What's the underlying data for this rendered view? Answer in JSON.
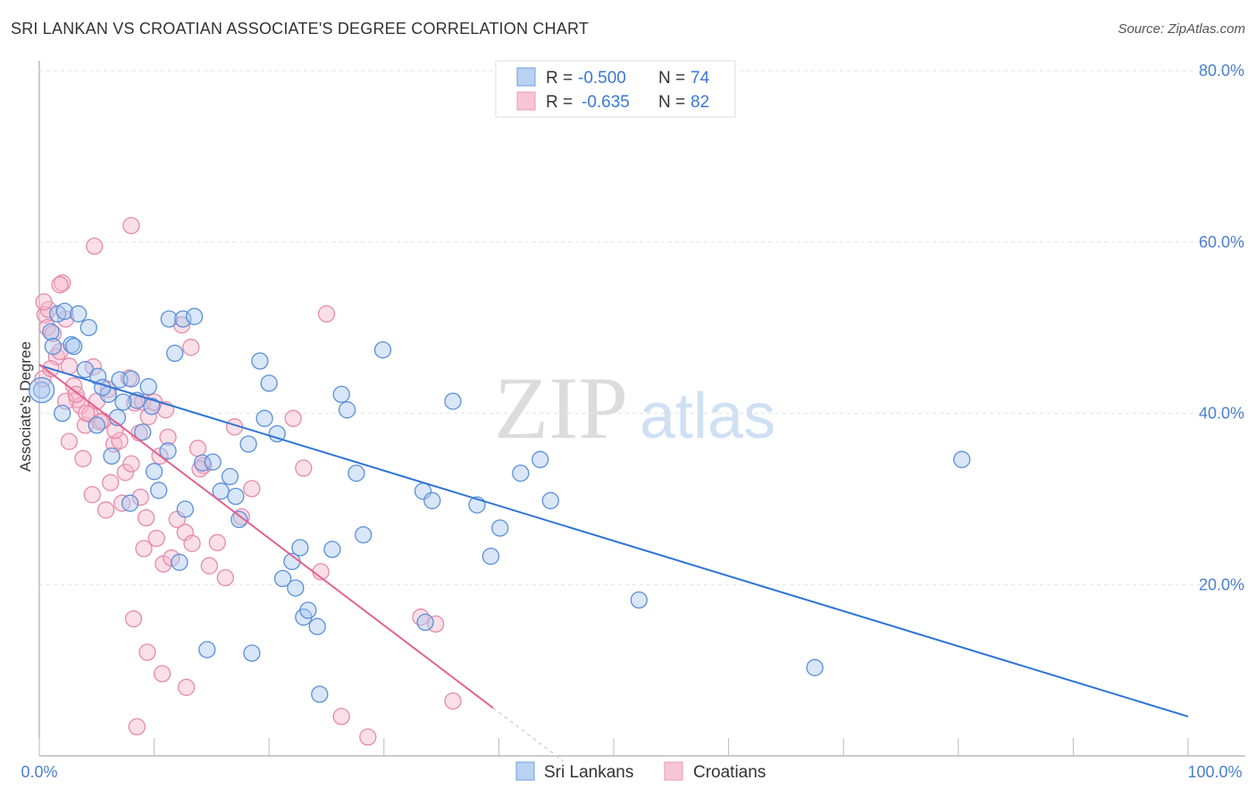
{
  "header": {
    "title": "SRI LANKAN VS CROATIAN ASSOCIATE'S DEGREE CORRELATION CHART",
    "source": "Source: ZipAtlas.com"
  },
  "watermark": {
    "zip": "ZIP",
    "atlas": "atlas"
  },
  "colors": {
    "blue_fill": "#a9c8f0",
    "blue_stroke": "#5b8fd8",
    "blue_line": "#2d74d6",
    "pink_fill": "#f6b8cc",
    "pink_stroke": "#e68aa9",
    "pink_line": "#e3628e"
  },
  "legend": {
    "rows": [
      {
        "r_label": "R = ",
        "r_value": "-0.500",
        "n_label": "N = ",
        "n_value": "74"
      },
      {
        "r_label": "R = ",
        "r_value": "-0.635",
        "n_label": "N = ",
        "n_value": "82"
      }
    ]
  },
  "chart_data": {
    "type": "scatter",
    "title": "SRI LANKAN VS CROATIAN ASSOCIATE'S DEGREE CORRELATION CHART",
    "xlabel": "",
    "ylabel": "Associate's Degree",
    "xlim": [
      0,
      100
    ],
    "ylim": [
      0,
      80
    ],
    "x_tick_labels": [
      "0.0%",
      "100.0%"
    ],
    "y_ticks": [
      20,
      40,
      60,
      80
    ],
    "y_tick_labels": [
      "20.0%",
      "40.0%",
      "60.0%",
      "80.0%"
    ],
    "legend_position": "bottom-center",
    "series": [
      {
        "name": "Sri Lankans",
        "color": "#5b8fd8",
        "trend": {
          "x0": 0,
          "y0": 45.6,
          "x1": 100,
          "y1": 4.6
        },
        "points": [
          [
            0.2,
            42.7
          ],
          [
            1.0,
            49.5
          ],
          [
            1.6,
            51.6
          ],
          [
            2.2,
            51.9
          ],
          [
            1.2,
            47.8
          ],
          [
            2.8,
            48.0
          ],
          [
            3.4,
            51.6
          ],
          [
            4.3,
            50.0
          ],
          [
            4.0,
            45.1
          ],
          [
            5.1,
            44.3
          ],
          [
            6.0,
            42.2
          ],
          [
            7.0,
            43.9
          ],
          [
            8.0,
            44.0
          ],
          [
            8.5,
            41.5
          ],
          [
            9.5,
            43.1
          ],
          [
            9.0,
            37.8
          ],
          [
            11.3,
            51.0
          ],
          [
            11.8,
            47.0
          ],
          [
            12.5,
            51.0
          ],
          [
            13.5,
            51.3
          ],
          [
            6.3,
            35.0
          ],
          [
            7.9,
            29.5
          ],
          [
            10.0,
            33.2
          ],
          [
            10.4,
            31.0
          ],
          [
            11.2,
            35.6
          ],
          [
            12.7,
            28.8
          ],
          [
            14.2,
            34.2
          ],
          [
            15.1,
            34.3
          ],
          [
            15.8,
            30.9
          ],
          [
            16.6,
            32.6
          ],
          [
            17.1,
            30.3
          ],
          [
            17.4,
            27.6
          ],
          [
            18.2,
            36.4
          ],
          [
            19.2,
            46.1
          ],
          [
            19.6,
            39.4
          ],
          [
            20.0,
            43.5
          ],
          [
            20.7,
            37.6
          ],
          [
            21.2,
            20.7
          ],
          [
            22.0,
            22.7
          ],
          [
            22.3,
            19.6
          ],
          [
            22.7,
            24.3
          ],
          [
            23.0,
            16.2
          ],
          [
            23.4,
            17.0
          ],
          [
            24.2,
            15.1
          ],
          [
            24.4,
            7.2
          ],
          [
            25.5,
            24.1
          ],
          [
            26.3,
            42.2
          ],
          [
            26.8,
            40.4
          ],
          [
            27.6,
            33.0
          ],
          [
            28.2,
            25.8
          ],
          [
            29.9,
            47.4
          ],
          [
            33.4,
            30.9
          ],
          [
            33.6,
            15.6
          ],
          [
            34.2,
            29.8
          ],
          [
            36.0,
            41.4
          ],
          [
            38.1,
            29.3
          ],
          [
            39.3,
            23.3
          ],
          [
            40.1,
            26.6
          ],
          [
            41.9,
            33.0
          ],
          [
            43.6,
            34.6
          ],
          [
            44.5,
            29.8
          ],
          [
            52.2,
            18.2
          ],
          [
            67.5,
            10.3
          ],
          [
            80.3,
            34.6
          ],
          [
            3.0,
            47.8
          ],
          [
            5.5,
            43.0
          ],
          [
            12.2,
            22.6
          ],
          [
            14.6,
            12.4
          ],
          [
            18.5,
            12.0
          ],
          [
            5.0,
            38.6
          ],
          [
            6.8,
            39.5
          ],
          [
            7.3,
            41.3
          ],
          [
            2.0,
            40.0
          ],
          [
            9.8,
            40.8
          ]
        ]
      },
      {
        "name": "Croatians",
        "color": "#e68aa9",
        "trend": {
          "x0": 0,
          "y0": 45.7,
          "x1": 39.5,
          "y1": 5.6
        },
        "points": [
          [
            0.3,
            44.0
          ],
          [
            0.5,
            51.5
          ],
          [
            0.7,
            50.0
          ],
          [
            1.2,
            49.3
          ],
          [
            1.5,
            46.6
          ],
          [
            1.8,
            47.2
          ],
          [
            2.0,
            55.2
          ],
          [
            2.3,
            51.0
          ],
          [
            2.6,
            45.5
          ],
          [
            3.0,
            43.2
          ],
          [
            3.3,
            41.6
          ],
          [
            3.6,
            40.9
          ],
          [
            4.0,
            38.6
          ],
          [
            4.4,
            39.9
          ],
          [
            4.7,
            45.4
          ],
          [
            5.0,
            41.4
          ],
          [
            5.5,
            39.1
          ],
          [
            6.0,
            42.8
          ],
          [
            6.5,
            36.4
          ],
          [
            7.0,
            36.8
          ],
          [
            7.5,
            33.1
          ],
          [
            8.0,
            34.1
          ],
          [
            8.3,
            41.2
          ],
          [
            8.7,
            37.7
          ],
          [
            9.0,
            41.3
          ],
          [
            9.5,
            39.6
          ],
          [
            10.0,
            41.3
          ],
          [
            10.5,
            35.0
          ],
          [
            11.0,
            40.4
          ],
          [
            6.2,
            31.9
          ],
          [
            7.2,
            29.5
          ],
          [
            8.8,
            30.2
          ],
          [
            9.3,
            27.8
          ],
          [
            10.2,
            25.4
          ],
          [
            10.8,
            22.4
          ],
          [
            11.5,
            23.1
          ],
          [
            12.0,
            27.6
          ],
          [
            12.7,
            26.1
          ],
          [
            13.3,
            24.8
          ],
          [
            13.8,
            35.9
          ],
          [
            14.3,
            33.9
          ],
          [
            14.8,
            22.2
          ],
          [
            15.5,
            24.9
          ],
          [
            16.2,
            20.8
          ],
          [
            17.0,
            38.4
          ],
          [
            17.6,
            27.9
          ],
          [
            18.5,
            31.2
          ],
          [
            22.1,
            39.4
          ],
          [
            23.0,
            33.6
          ],
          [
            24.5,
            21.5
          ],
          [
            25.0,
            51.6
          ],
          [
            26.3,
            4.6
          ],
          [
            28.6,
            2.2
          ],
          [
            33.2,
            16.2
          ],
          [
            34.5,
            15.4
          ],
          [
            36.0,
            6.4
          ],
          [
            4.8,
            59.5
          ],
          [
            8.0,
            61.9
          ],
          [
            1.8,
            55.0
          ],
          [
            0.8,
            52.1
          ],
          [
            2.6,
            36.7
          ],
          [
            3.8,
            34.7
          ],
          [
            4.6,
            30.5
          ],
          [
            5.8,
            28.7
          ],
          [
            9.1,
            24.2
          ],
          [
            8.2,
            16.0
          ],
          [
            9.4,
            12.1
          ],
          [
            12.8,
            8.0
          ],
          [
            8.5,
            3.4
          ],
          [
            10.7,
            9.6
          ],
          [
            12.4,
            50.3
          ],
          [
            13.2,
            47.7
          ],
          [
            0.4,
            53.0
          ],
          [
            1.0,
            45.2
          ],
          [
            2.3,
            41.4
          ],
          [
            3.2,
            42.2
          ],
          [
            4.1,
            40.0
          ],
          [
            5.3,
            39.0
          ],
          [
            6.6,
            38.0
          ],
          [
            7.8,
            44.1
          ],
          [
            11.2,
            37.2
          ],
          [
            14.0,
            33.5
          ]
        ]
      }
    ]
  }
}
